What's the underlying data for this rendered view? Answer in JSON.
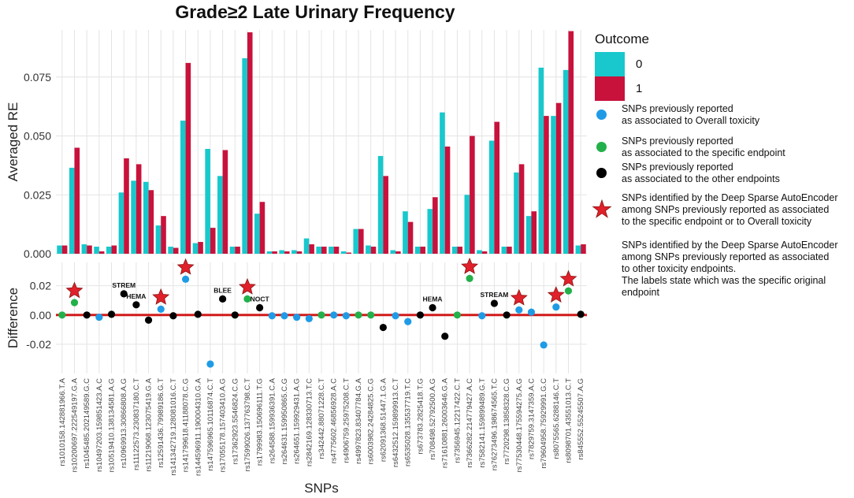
{
  "chart_data": {
    "type": "bar",
    "title": "Grade≥2 Late Urinary Frequency",
    "xlabel": "SNPs",
    "panels": [
      {
        "name": "top",
        "ylabel": "Averaged RE",
        "ylim": [
          0,
          0.095
        ],
        "ticks": [
          "0.000",
          "0.025",
          "0.050",
          "0.075"
        ],
        "tick_values": [
          0,
          0.025,
          0.05,
          0.075
        ]
      },
      {
        "name": "bottom",
        "ylabel": "Difference",
        "ylim": [
          -0.04,
          0.036
        ],
        "ticks": [
          "-0.02",
          "0.00",
          "0.02"
        ],
        "tick_values": [
          -0.02,
          0,
          0.02
        ]
      }
    ],
    "categories": [
      "rs1010158.142881966.T.A",
      "rs10200697.222549197.G.A",
      "rs1045485.202149589.G.C",
      "rs10497203.159851423.A.C",
      "rs10519410.138134581.A.G",
      "rs10969913.30866808.A.G",
      "rs11122573.230837180.C.T",
      "rs11219068.123075419.G.A",
      "rs12591436.79989186.G.T",
      "rs141342719.128081016.C.T",
      "rs141799618.41188078.C.G",
      "rs144596911.190004310.G.A",
      "rs147596965.10116874.C.T",
      "rs17055178.157403410.A.G",
      "rs17362923.5546824.C.G",
      "rs17599026.137763798.C.T",
      "rs1799983.150696111.T.G",
      "rs264588.159936391.C.A",
      "rs264631.159950865.C.G",
      "rs264651.159929431.A.G",
      "rs2842169.128330713.T.C",
      "rs342442.88071228.C.T",
      "rs4775602.46856928.A.C",
      "rs4906759.25975208.C.T",
      "rs4997823.83407784.G.A",
      "rs6003982.24284825.C.G",
      "rs62091368.51447.1.G.A",
      "rs6432512.159899913.C.T",
      "rs6535028.135537719.T.C",
      "rs673783.2825418.T.G",
      "rs708498.52792500.A.G",
      "rs71610881.26003646.G.A",
      "rs7356945.12217422.C.T",
      "rs7366282.214779427.A.C",
      "rs7582141.159899489.G.T",
      "rs76273496.198674565.T.C",
      "rs7720298.13858328.C.G",
      "rs77530448.175594275.A.G",
      "rs7829759.3147359.A.C",
      "rs79604958.75929991.G.C",
      "rs8075565.6288146.C.T",
      "rs8098701.43551013.C.T",
      "rs845552.55245507.A.G"
    ],
    "series": [
      {
        "name": "0",
        "color": "#18c8cc",
        "values": [
          0.0035,
          0.0365,
          0.004,
          0.003,
          0.003,
          0.026,
          0.031,
          0.0305,
          0.012,
          0.003,
          0.0565,
          0.0045,
          0.0445,
          0.033,
          0.003,
          0.083,
          0.017,
          0.001,
          0.0015,
          0.0015,
          0.0065,
          0.003,
          0.003,
          0.001,
          0.0105,
          0.0035,
          0.0415,
          0.0015,
          0.018,
          0.003,
          0.019,
          0.06,
          0.003,
          0.025,
          0.0015,
          0.048,
          0.003,
          0.0345,
          0.016,
          0.079,
          0.0585,
          0.078,
          0.0035
        ]
      },
      {
        "name": "1",
        "color": "#c8123c",
        "values": [
          0.0035,
          0.045,
          0.0035,
          0.001,
          0.0035,
          0.0405,
          0.038,
          0.027,
          0.016,
          0.0025,
          0.081,
          0.005,
          0.011,
          0.044,
          0.003,
          0.094,
          0.022,
          0.001,
          0.001,
          0.001,
          0.004,
          0.003,
          0.003,
          0.0005,
          0.0105,
          0.003,
          0.033,
          0.001,
          0.0135,
          0.003,
          0.024,
          0.0455,
          0.003,
          0.05,
          0.001,
          0.056,
          0.003,
          0.038,
          0.018,
          0.0585,
          0.064,
          0.0945,
          0.004
        ]
      }
    ],
    "difference": [
      0.0,
      0.0085,
      0.0,
      -0.0015,
      0.0005,
      0.0145,
      0.007,
      -0.0035,
      0.004,
      -0.0005,
      0.0245,
      0.0005,
      -0.0335,
      0.011,
      0.0,
      0.011,
      0.005,
      -0.0005,
      -0.0005,
      -0.0015,
      -0.0025,
      0.0,
      0.0,
      -0.0005,
      0.0,
      0.0,
      -0.0085,
      -0.0005,
      -0.0045,
      0.0,
      0.005,
      -0.0145,
      0.0,
      0.025,
      -0.0005,
      0.008,
      0.0,
      0.0035,
      0.002,
      -0.0205,
      0.0055,
      0.0165,
      0.0005
    ],
    "difference_groups": [
      "specific",
      "specific",
      "other",
      "overall",
      "other",
      "other",
      "other",
      "other",
      "overall",
      "other",
      "overall",
      "other",
      "overall",
      "other",
      "other",
      "specific",
      "other",
      "overall",
      "overall",
      "overall",
      "overall",
      "specific",
      "overall",
      "overall",
      "specific",
      "specific",
      "other",
      "overall",
      "overall",
      "other",
      "other",
      "other",
      "specific",
      "specific",
      "overall",
      "other",
      "other",
      "overall",
      "overall",
      "overall",
      "overall",
      "specific",
      "other"
    ],
    "stars": [
      1,
      8,
      10,
      15,
      33,
      37,
      40,
      41
    ],
    "annotations": [
      {
        "text": "STREM",
        "index": 5
      },
      {
        "text": "HEMA",
        "index": 6
      },
      {
        "text": "BLEE",
        "index": 13
      },
      {
        "text": "NOCT",
        "index": 16
      },
      {
        "text": "HEMA",
        "index": 30
      },
      {
        "text": "STREAM",
        "index": 35
      }
    ],
    "legend": {
      "title": "Outcome",
      "entries": [
        {
          "label": "0",
          "color": "#18c8cc"
        },
        {
          "label": "1",
          "color": "#c8123c"
        }
      ]
    }
  },
  "legend_notes": {
    "overall": "SNPs previously reported\nas associated to Overall toxicity",
    "specific": "SNPs previously reported\nas associated to the specific endpoint",
    "other": "SNPs previously reported\nas associated to the other endpoints",
    "star": "SNPs identified by the Deep Sparse AutoEncoder\namong SNPs previously reported as associated\nto the specific endpoint or to Overall toxicity",
    "other_text": "SNPs identified by the Deep Sparse AutoEncoder\namong SNPs previously reported as associated\nto other toxicity endpoints.\nThe labels state which was the specific original endpoint"
  },
  "colors": {
    "overall": "#1f9be6",
    "specific": "#22b04a",
    "other": "#000000",
    "star": "#e0202a",
    "zero_line": "#d11a1a",
    "grid": "#e4e4e4"
  }
}
